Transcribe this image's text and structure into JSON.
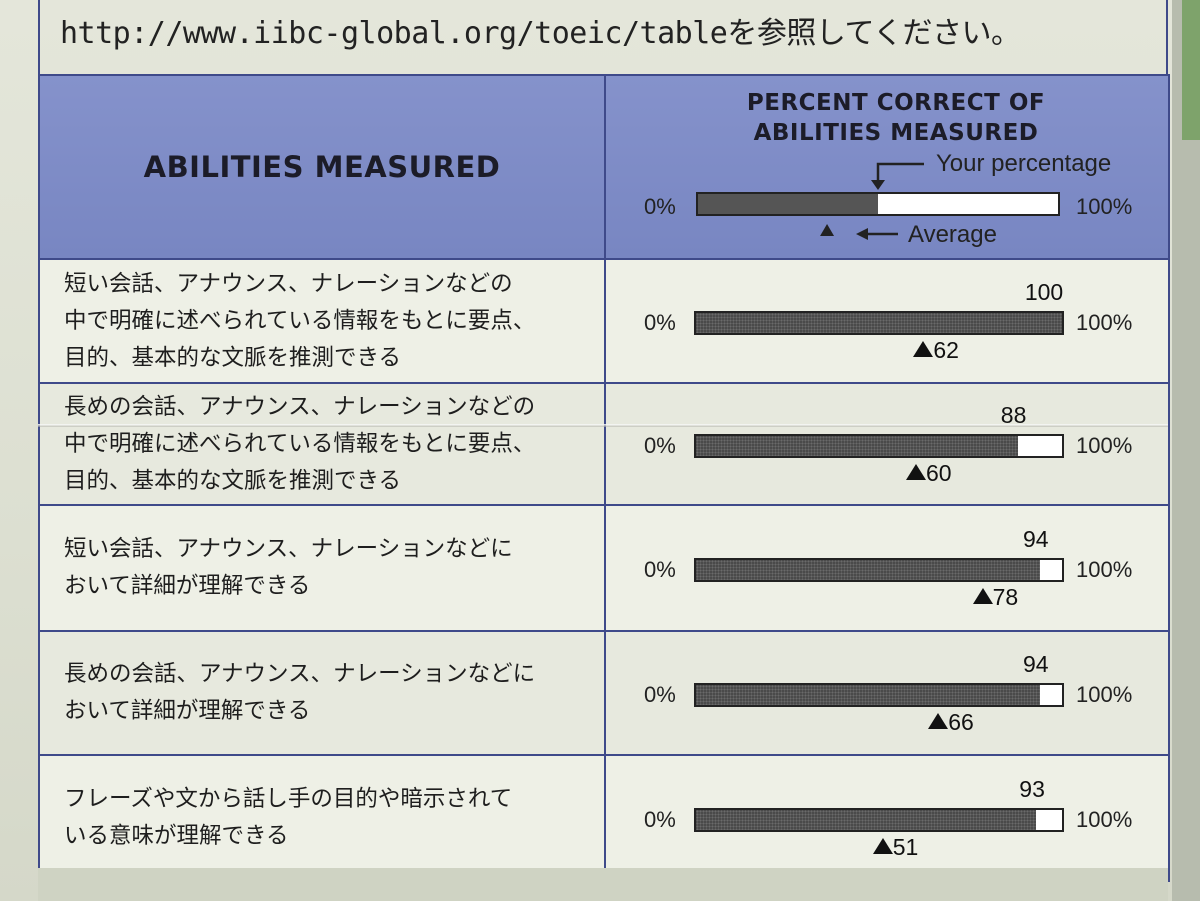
{
  "header_note": "http://www.iibc-global.org/toeic/tableを参照してください。",
  "table": {
    "left_header": "ABILITIES MEASURED",
    "right_header_line1": "PERCENT CORRECT OF",
    "right_header_line2": "ABILITIES MEASURED",
    "legend": {
      "your_percentage": "Your percentage",
      "average": "Average",
      "zero_label": "0%",
      "hundred_label": "100%",
      "example_fill": 0.5,
      "example_avg": 0.36
    },
    "rows": [
      {
        "ability": "短い会話、アナウンス、ナレーションなどの\n中で明確に述べられている情報をもとに要点、\n目的、基本的な文脈を推測できる",
        "zero_label": "0%",
        "hundred_label": "100%",
        "score": 100,
        "score_label": "100",
        "average": 62,
        "average_label": "62"
      },
      {
        "ability": "長めの会話、アナウンス、ナレーションなどの\n中で明確に述べられている情報をもとに要点、\n目的、基本的な文脈を推測できる",
        "zero_label": "0%",
        "hundred_label": "100%",
        "score": 88,
        "score_label": "88",
        "average": 60,
        "average_label": "60"
      },
      {
        "ability": "短い会話、アナウンス、ナレーションなどに\nおいて詳細が理解できる",
        "zero_label": "0%",
        "hundred_label": "100%",
        "score": 94,
        "score_label": "94",
        "average": 78,
        "average_label": "78"
      },
      {
        "ability": "長めの会話、アナウンス、ナレーションなどに\nおいて詳細が理解できる",
        "zero_label": "0%",
        "hundred_label": "100%",
        "score": 94,
        "score_label": "94",
        "average": 66,
        "average_label": "66"
      },
      {
        "ability": "フレーズや文から話し手の目的や暗示されて\nいる意味が理解できる",
        "zero_label": "0%",
        "hundred_label": "100%",
        "score": 93,
        "score_label": "93",
        "average": 51,
        "average_label": "51"
      }
    ]
  },
  "colors": {
    "header_background": "#7f8ec8",
    "border": "#3f4a8a",
    "bar_fill": "#4a4a4a",
    "bar_empty": "#ffffff"
  }
}
